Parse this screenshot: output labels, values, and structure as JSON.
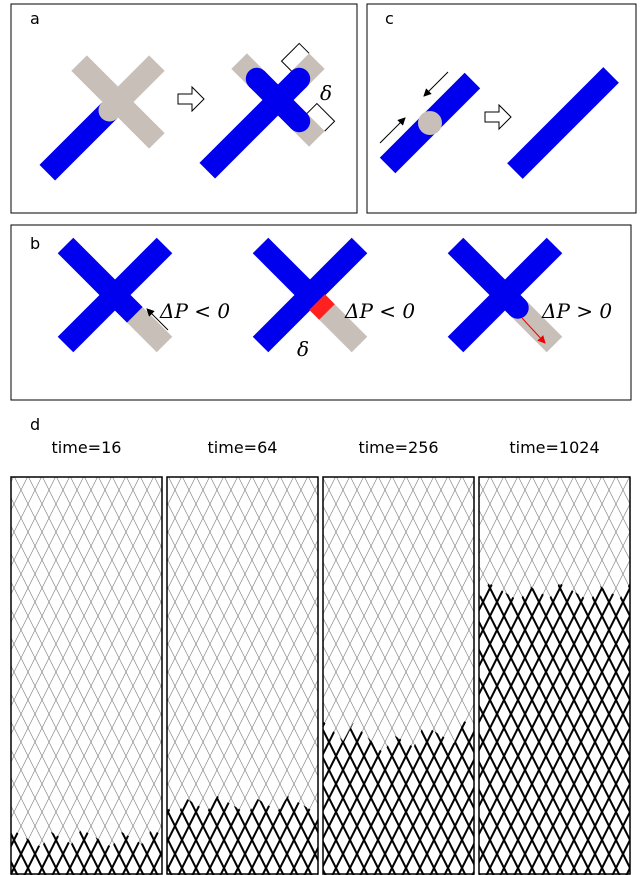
{
  "panels": {
    "a": {
      "label": "a",
      "delta": "δ"
    },
    "b": {
      "label": "b",
      "annotations": [
        "ΔP < 0",
        "ΔP < 0",
        "ΔP > 0"
      ],
      "delta": "δ"
    },
    "c": {
      "label": "c"
    },
    "d": {
      "label": "d",
      "times": [
        "time=16",
        "time=64",
        "time=256",
        "time=1024"
      ]
    }
  }
}
